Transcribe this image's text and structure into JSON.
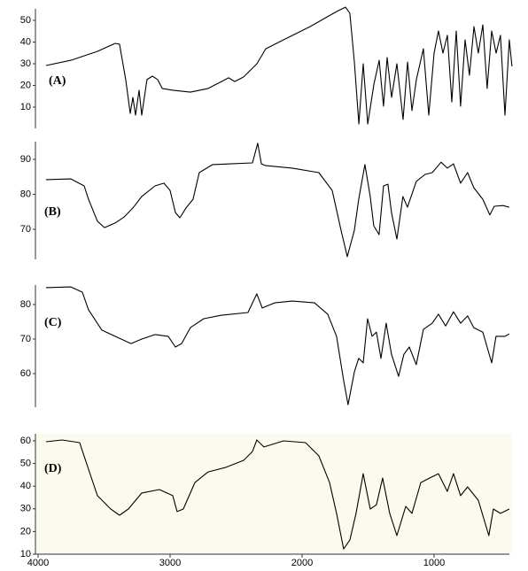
{
  "chart_data": [
    {
      "type": "line",
      "annotation": "(A)",
      "xlim": [
        4000,
        400
      ],
      "ylim": [
        0,
        57
      ],
      "yticks": [
        10,
        20,
        30,
        40,
        50
      ],
      "color": "#000000",
      "x": [
        3940,
        3752,
        3550,
        3416,
        3383,
        3336,
        3302,
        3282,
        3262,
        3235,
        3215,
        3175,
        3134,
        3094,
        3060,
        2980,
        2846,
        2712,
        2611,
        2557,
        2510,
        2443,
        2342,
        2275,
        2141,
        1940,
        1738,
        1671,
        1638,
        1604,
        1570,
        1537,
        1503,
        1456,
        1416,
        1383,
        1356,
        1322,
        1282,
        1235,
        1201,
        1168,
        1134,
        1081,
        1040,
        1000,
        967,
        933,
        899,
        866,
        832,
        799,
        765,
        732,
        698,
        665,
        631,
        598,
        564,
        530,
        497,
        463,
        430,
        410
      ],
      "values": [
        29.2,
        31.6,
        35.7,
        39.4,
        39,
        22.7,
        7.1,
        14.5,
        6.3,
        17.8,
        6.3,
        22.7,
        24.3,
        22.7,
        18.6,
        17.8,
        16.9,
        18.6,
        21.8,
        23.5,
        21.8,
        23.9,
        30,
        36.9,
        41,
        47.1,
        54.1,
        56.1,
        53.3,
        30.8,
        2.2,
        30,
        2.2,
        20.6,
        31.6,
        10.4,
        32.9,
        14.5,
        30,
        4.3,
        30.8,
        8.4,
        22.7,
        36.9,
        6.3,
        34.9,
        45.1,
        34.9,
        43.1,
        12.4,
        45.1,
        10.4,
        41,
        24.7,
        47.1,
        34.9,
        47.9,
        18.6,
        45.1,
        34.9,
        43.1,
        6.3,
        41,
        28.8
      ]
    },
    {
      "type": "line",
      "annotation": "(B)",
      "xlim": [
        4000,
        400
      ],
      "ylim": [
        61,
        95
      ],
      "yticks": [
        70,
        80,
        90
      ],
      "color": "#000000",
      "x": [
        3940,
        3752,
        3651,
        3618,
        3550,
        3497,
        3416,
        3349,
        3282,
        3215,
        3114,
        3047,
        3000,
        2960,
        2926,
        2879,
        2826,
        2779,
        2678,
        2544,
        2376,
        2336,
        2309,
        2275,
        2074,
        1873,
        1772,
        1705,
        1658,
        1604,
        1571,
        1524,
        1484,
        1457,
        1417,
        1383,
        1350,
        1323,
        1282,
        1236,
        1202,
        1135,
        1068,
        1014,
        947,
        900,
        853,
        799,
        746,
        699,
        631,
        578,
        544,
        477,
        430
      ],
      "values": [
        84.2,
        84.4,
        82.4,
        78.6,
        72.3,
        70.5,
        71.8,
        73.5,
        76.1,
        79.4,
        82.4,
        83.2,
        81.1,
        74.8,
        73.3,
        76.1,
        78.6,
        86.2,
        88.5,
        88.7,
        89,
        94.6,
        88.7,
        88.2,
        87.5,
        86.2,
        81.1,
        69.7,
        62.2,
        69.7,
        78.6,
        88.5,
        79.4,
        71,
        68.5,
        82.4,
        82.9,
        74.8,
        67.2,
        79.4,
        76.3,
        83.7,
        85.7,
        86.2,
        89.2,
        87.5,
        88.7,
        83.2,
        86.2,
        81.9,
        78.6,
        74.1,
        76.6,
        76.8,
        76.3
      ]
    },
    {
      "type": "line",
      "annotation": "(C)",
      "xlim": [
        4000,
        400
      ],
      "ylim": [
        50,
        86
      ],
      "yticks": [
        60,
        70,
        80
      ],
      "color": "#000000",
      "x": [
        3940,
        3752,
        3665,
        3618,
        3517,
        3416,
        3296,
        3215,
        3114,
        3014,
        2960,
        2913,
        2846,
        2745,
        2611,
        2410,
        2343,
        2302,
        2208,
        2074,
        1906,
        1806,
        1739,
        1685,
        1652,
        1604,
        1571,
        1537,
        1504,
        1470,
        1437,
        1403,
        1363,
        1323,
        1269,
        1229,
        1188,
        1135,
        1081,
        1014,
        967,
        913,
        853,
        799,
        746,
        699,
        631,
        564,
        531,
        464,
        430
      ],
      "values": [
        84.9,
        85.1,
        83.6,
        78.5,
        72.6,
        70.8,
        68.7,
        70,
        71.3,
        70.8,
        67.7,
        68.7,
        73.3,
        75.9,
        76.9,
        77.7,
        83.1,
        79,
        80.5,
        81,
        80.5,
        77.2,
        70.8,
        58,
        51,
        60.5,
        64.4,
        63.1,
        75.9,
        70.8,
        72,
        64.4,
        74.6,
        65.6,
        59.2,
        65.6,
        67.7,
        62.6,
        72.8,
        74.6,
        77.2,
        73.8,
        77.9,
        74.6,
        76.7,
        73.3,
        72,
        63.1,
        70.8,
        70.8,
        71.5
      ]
    },
    {
      "type": "line",
      "annotation": "(D)",
      "xlim": [
        4000,
        400
      ],
      "ylim": [
        10,
        63
      ],
      "yticks": [
        10,
        20,
        30,
        40,
        50,
        60
      ],
      "xticks": [
        4000,
        3000,
        2000,
        1000
      ],
      "color": "#000000",
      "x": [
        3940,
        3819,
        3685,
        3618,
        3550,
        3450,
        3383,
        3316,
        3215,
        3081,
        2980,
        2947,
        2900,
        2812,
        2712,
        2577,
        2443,
        2376,
        2343,
        2289,
        2141,
        1974,
        1873,
        1792,
        1739,
        1685,
        1638,
        1591,
        1537,
        1484,
        1437,
        1390,
        1336,
        1282,
        1215,
        1168,
        1101,
        1034,
        967,
        900,
        853,
        799,
        746,
        665,
        585,
        551,
        497,
        430
      ],
      "values": [
        59.6,
        60.4,
        59.2,
        47.5,
        35.8,
        29.9,
        27.2,
        29.9,
        37,
        38.5,
        35.8,
        28.8,
        29.9,
        41.6,
        46.3,
        48.3,
        51.4,
        55.3,
        60.4,
        57.3,
        60,
        59.2,
        53.4,
        41.6,
        28,
        12.3,
        16.2,
        28,
        45.5,
        29.9,
        31.8,
        43.6,
        28,
        18.2,
        31.1,
        28,
        41.6,
        43.6,
        45.5,
        37.7,
        45.5,
        35.8,
        39.7,
        33.8,
        18.2,
        29.9,
        28,
        29.9
      ]
    }
  ]
}
